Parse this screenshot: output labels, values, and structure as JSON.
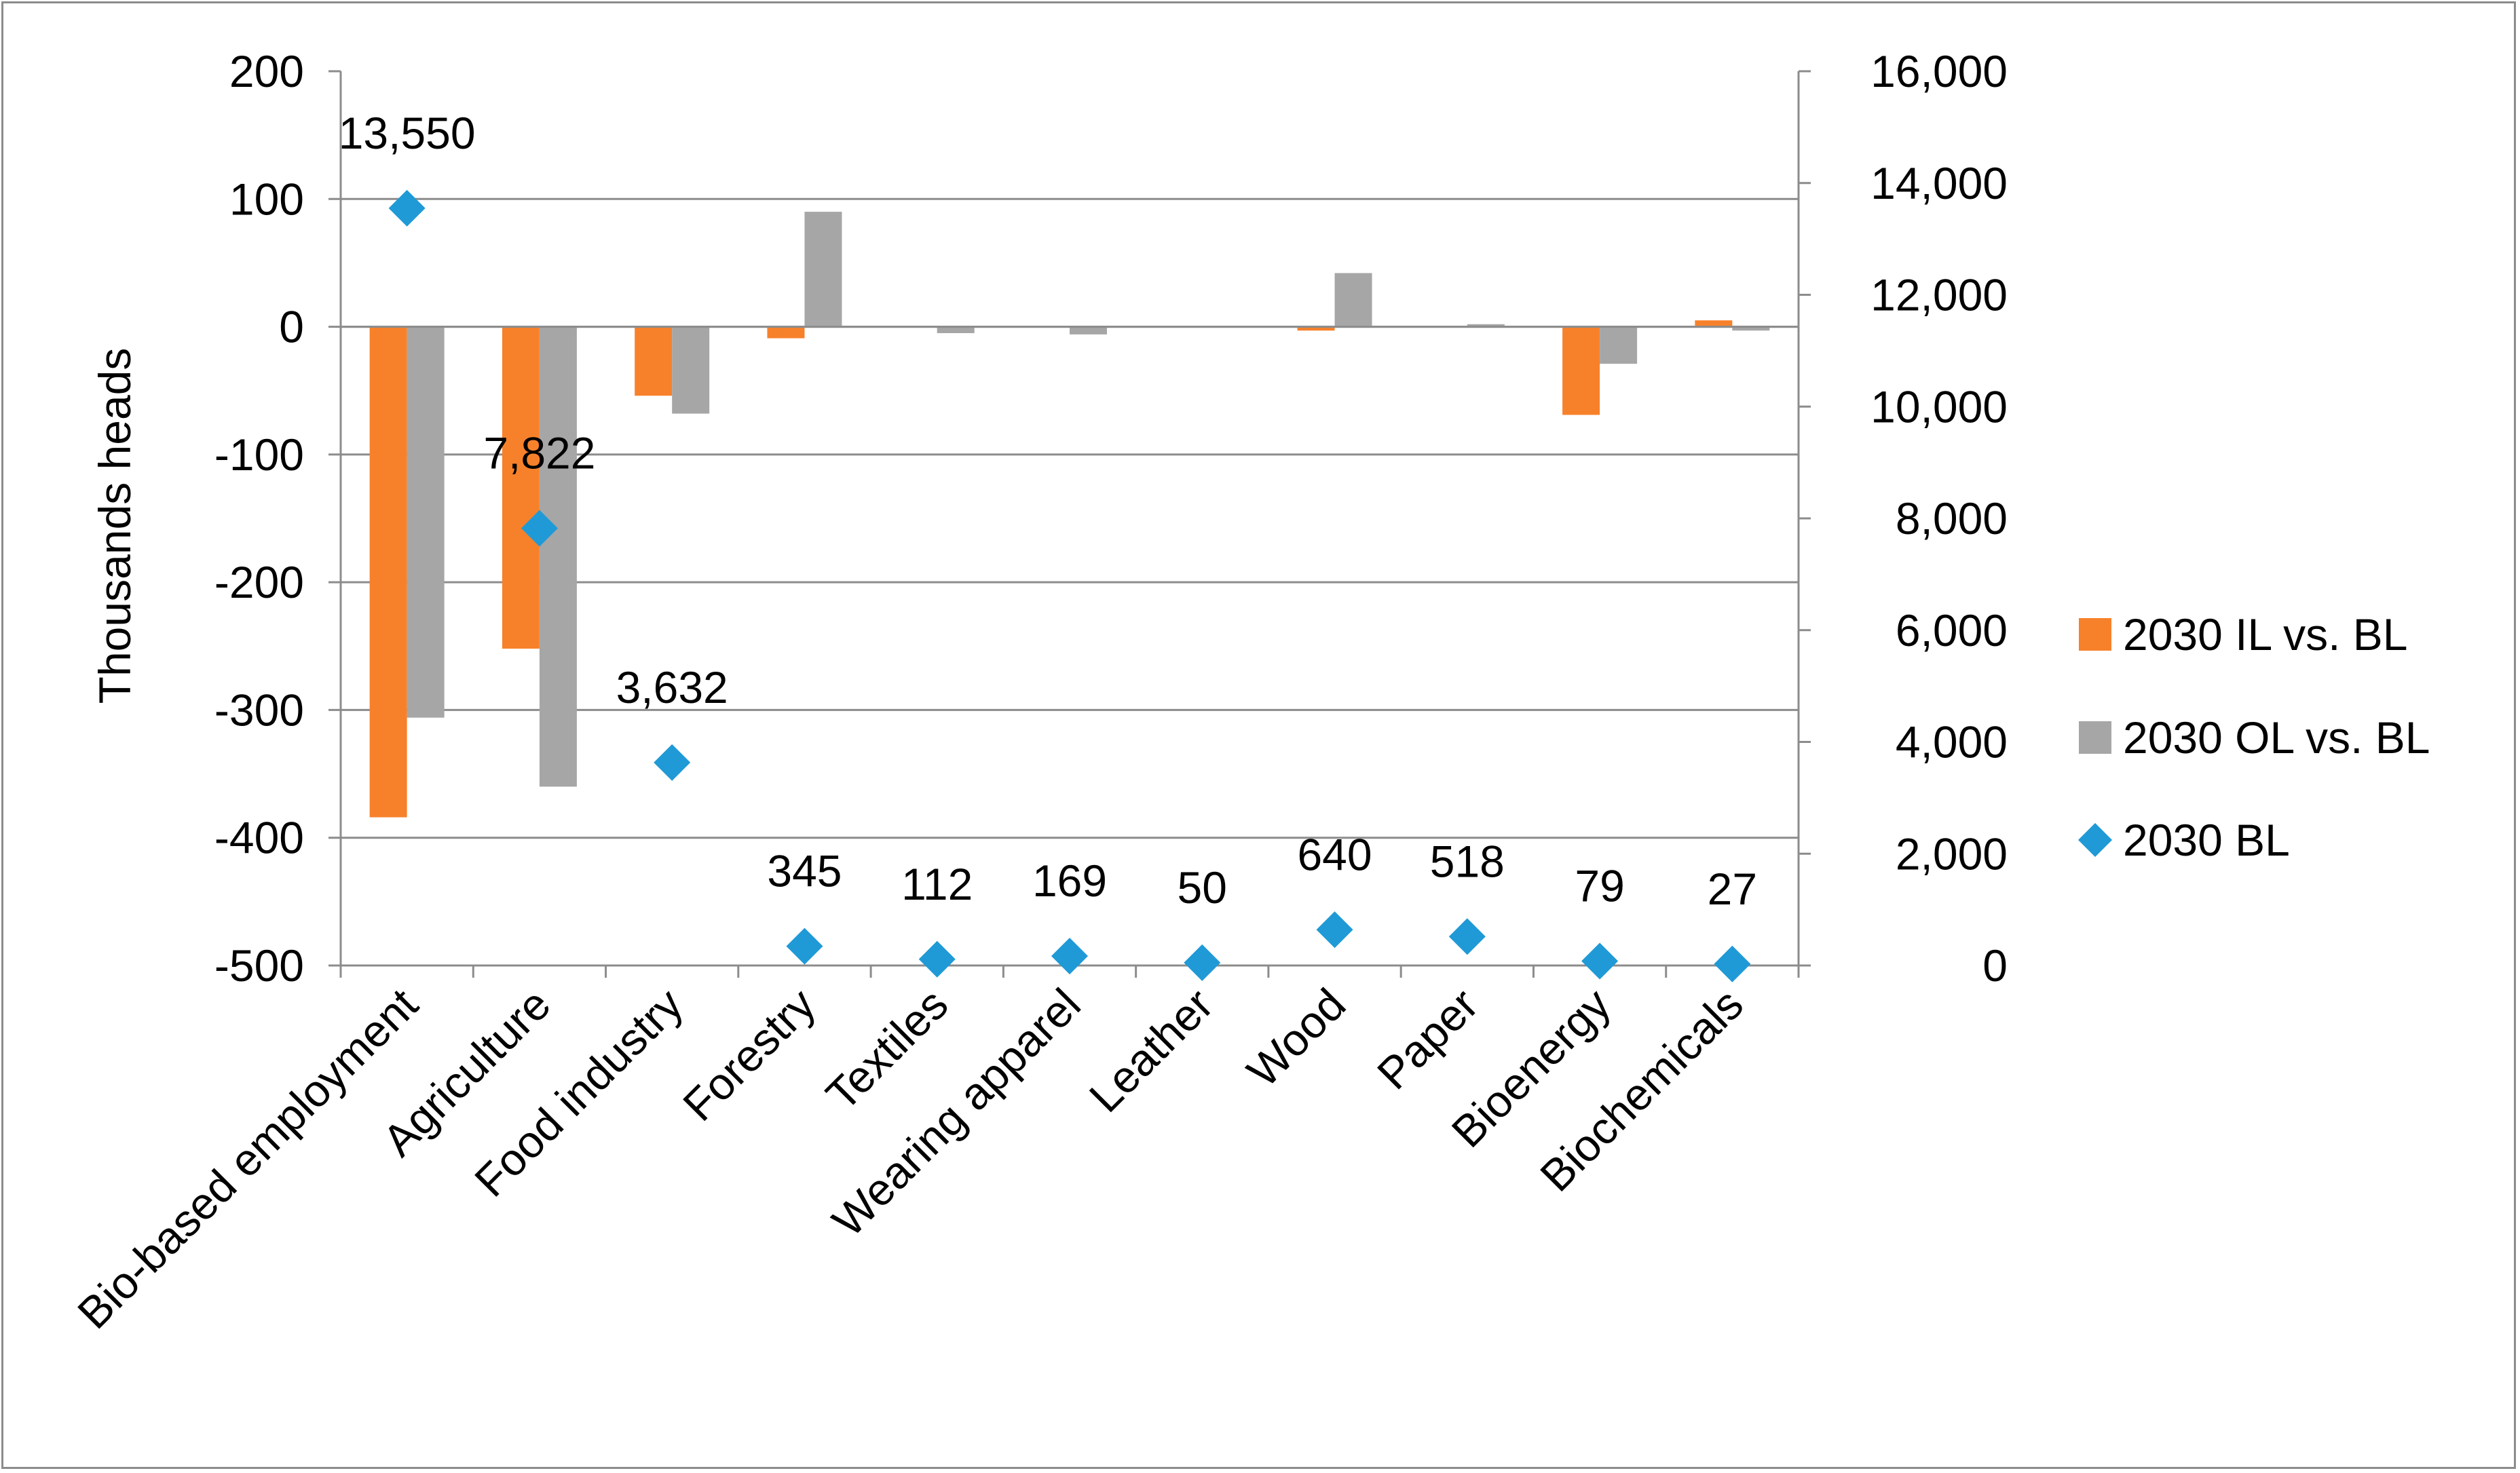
{
  "chart_data": {
    "type": "bar",
    "title": "",
    "xlabel": "",
    "ylabel": "Thousands heads",
    "y2label": "",
    "ylim": [
      -500,
      200
    ],
    "y2lim": [
      0,
      16000
    ],
    "yticks": [
      "200",
      "100",
      "0",
      "-100",
      "-200",
      "-300",
      "-400",
      "-500"
    ],
    "y2ticks": [
      "16,000",
      "14,000",
      "12,000",
      "10,000",
      "8,000",
      "6,000",
      "4,000",
      "2,000",
      "0"
    ],
    "categories": [
      "Bio-based employment",
      "Agriculture",
      "Food industry",
      "Forestry",
      "Textiles",
      "Wearing apparel",
      "Leather",
      "Wood",
      "Paper",
      "Bioenergy",
      "Biochemicals"
    ],
    "series": [
      {
        "name": "2030 IL vs. BL",
        "type": "bar",
        "axis": "left",
        "color": "#f7812a",
        "values": [
          -384,
          -252,
          -54,
          -9,
          0,
          0,
          0,
          -3,
          0,
          -69,
          5
        ]
      },
      {
        "name": "2030 OL vs. BL",
        "type": "bar",
        "axis": "left",
        "color": "#a6a6a6",
        "values": [
          -306,
          -360,
          -68,
          90,
          -5,
          -6,
          0,
          42,
          2,
          -29,
          -3
        ]
      },
      {
        "name": "2030 BL",
        "type": "scatter",
        "axis": "right",
        "color": "#1f9ad6",
        "values": [
          13550,
          7822,
          3632,
          345,
          112,
          169,
          50,
          640,
          518,
          79,
          27
        ],
        "labels": [
          "13,550",
          "7,822",
          "3,632",
          "345",
          "112",
          "169",
          "50",
          "640",
          "518",
          "79",
          "27"
        ]
      }
    ],
    "grid": true,
    "legend": "right"
  }
}
